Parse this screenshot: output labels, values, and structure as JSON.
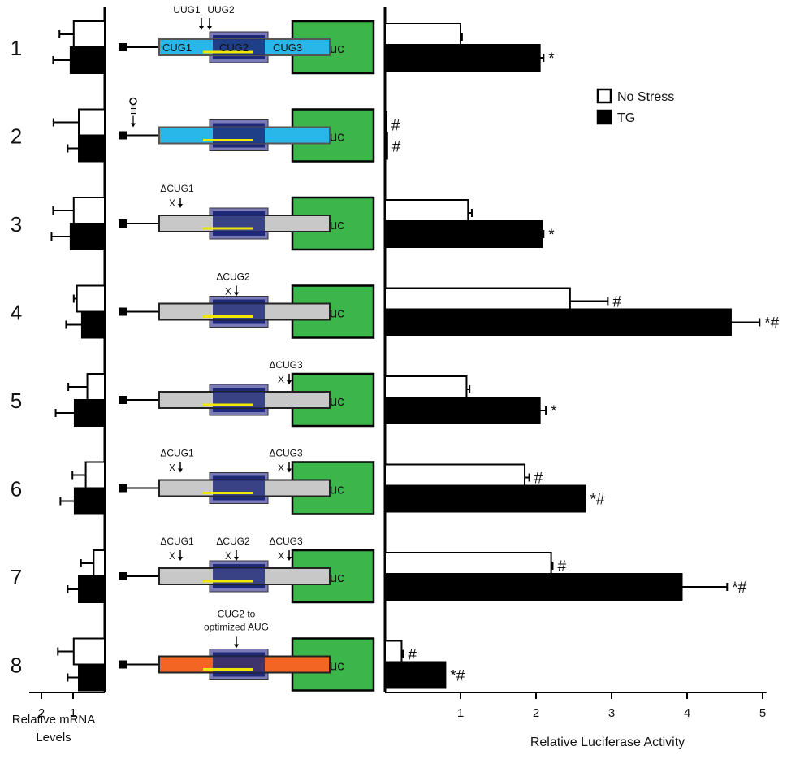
{
  "chart_data": [
    {
      "type": "bar",
      "orientation": "horizontal",
      "reversed_x": true,
      "xlabel": "Relative mRNA\nLevels",
      "xticks": [
        2,
        1
      ],
      "xlim": [
        0,
        2.1
      ],
      "categories": [
        "1",
        "2",
        "3",
        "4",
        "5",
        "6",
        "7",
        "8"
      ],
      "series": [
        {
          "key": "nostress",
          "color": "#ffffff",
          "values": [
            0.98,
            0.82,
            0.98,
            0.88,
            0.55,
            0.6,
            0.35,
            0.98
          ],
          "errors": [
            0.45,
            0.8,
            0.65,
            0.1,
            0.6,
            0.42,
            0.4,
            0.5
          ]
        },
        {
          "key": "tg",
          "color": "#000000",
          "values": [
            1.08,
            0.82,
            1.08,
            0.72,
            0.95,
            0.95,
            0.82,
            0.82
          ],
          "errors": [
            0.55,
            0.35,
            0.6,
            0.5,
            0.6,
            0.45,
            0.35,
            0.35
          ]
        }
      ]
    },
    {
      "type": "bar",
      "orientation": "horizontal",
      "xlabel": "Relative Luciferase Activity",
      "xticks": [
        1,
        2,
        3,
        4,
        5
      ],
      "xlim": [
        0,
        5.05
      ],
      "categories": [
        "1",
        "2",
        "3",
        "4",
        "5",
        "6",
        "7",
        "8"
      ],
      "legend": {
        "position": "top-right",
        "entries": [
          {
            "label": "No Stress",
            "color": "#ffffff"
          },
          {
            "label": "TG",
            "color": "#000000"
          }
        ]
      },
      "series": [
        {
          "name": "No Stress",
          "color": "#ffffff",
          "values": [
            1.0,
            0.02,
            1.1,
            2.45,
            1.08,
            1.85,
            2.2,
            0.22
          ],
          "errors": [
            0.02,
            0.0,
            0.05,
            0.5,
            0.04,
            0.06,
            0.02,
            0.02
          ],
          "marks": [
            "",
            "#",
            "",
            "#",
            "",
            "#",
            "#",
            "#"
          ]
        },
        {
          "name": "TG",
          "color": "#000000",
          "values": [
            2.05,
            0.03,
            2.08,
            4.58,
            2.05,
            2.65,
            3.93,
            0.8
          ],
          "errors": [
            0.05,
            0.0,
            0.02,
            0.38,
            0.08,
            0.0,
            0.6,
            0.0
          ],
          "marks": [
            "*",
            "#",
            "*",
            "*#",
            "*",
            "*#",
            "*#",
            "*#"
          ]
        }
      ]
    }
  ],
  "constructs": [
    {
      "row": "1",
      "bar": "blue",
      "cug_labels": [
        "CUG1",
        "CUG2",
        "CUG3"
      ],
      "uug_labels": [
        "UUG1",
        "UUG2"
      ],
      "hairpin": false,
      "deletions": [],
      "note": ""
    },
    {
      "row": "2",
      "bar": "blue",
      "cug_labels": [],
      "uug_labels": [],
      "hairpin": true,
      "deletions": [],
      "note": ""
    },
    {
      "row": "3",
      "bar": "gray",
      "cug_labels": [],
      "uug_labels": [],
      "hairpin": false,
      "deletions": [
        "ΔCUG1"
      ],
      "note": ""
    },
    {
      "row": "4",
      "bar": "gray",
      "cug_labels": [],
      "uug_labels": [],
      "hairpin": false,
      "deletions": [
        "ΔCUG2"
      ],
      "note": ""
    },
    {
      "row": "5",
      "bar": "gray",
      "cug_labels": [],
      "uug_labels": [],
      "hairpin": false,
      "deletions": [
        "ΔCUG3"
      ],
      "note": ""
    },
    {
      "row": "6",
      "bar": "gray",
      "cug_labels": [],
      "uug_labels": [],
      "hairpin": false,
      "deletions": [
        "ΔCUG1",
        "ΔCUG3"
      ],
      "note": ""
    },
    {
      "row": "7",
      "bar": "gray",
      "cug_labels": [],
      "uug_labels": [],
      "hairpin": false,
      "deletions": [
        "ΔCUG1",
        "ΔCUG2",
        "ΔCUG3"
      ],
      "note": ""
    },
    {
      "row": "8",
      "bar": "orange",
      "cug_labels": [],
      "uug_labels": [],
      "hairpin": false,
      "deletions": [],
      "note": "CUG2 to\noptimized AUG"
    }
  ],
  "reporter_label": "Luc",
  "deletion_marker": "X",
  "colors": {
    "blue": "#29b6e8",
    "gray": "#c8c8c8",
    "orange": "#f26522",
    "luc": "#3cb54a",
    "navy": "#1e2a78",
    "yellow": "#f0e800",
    "stripe": "#7a7ab8"
  }
}
